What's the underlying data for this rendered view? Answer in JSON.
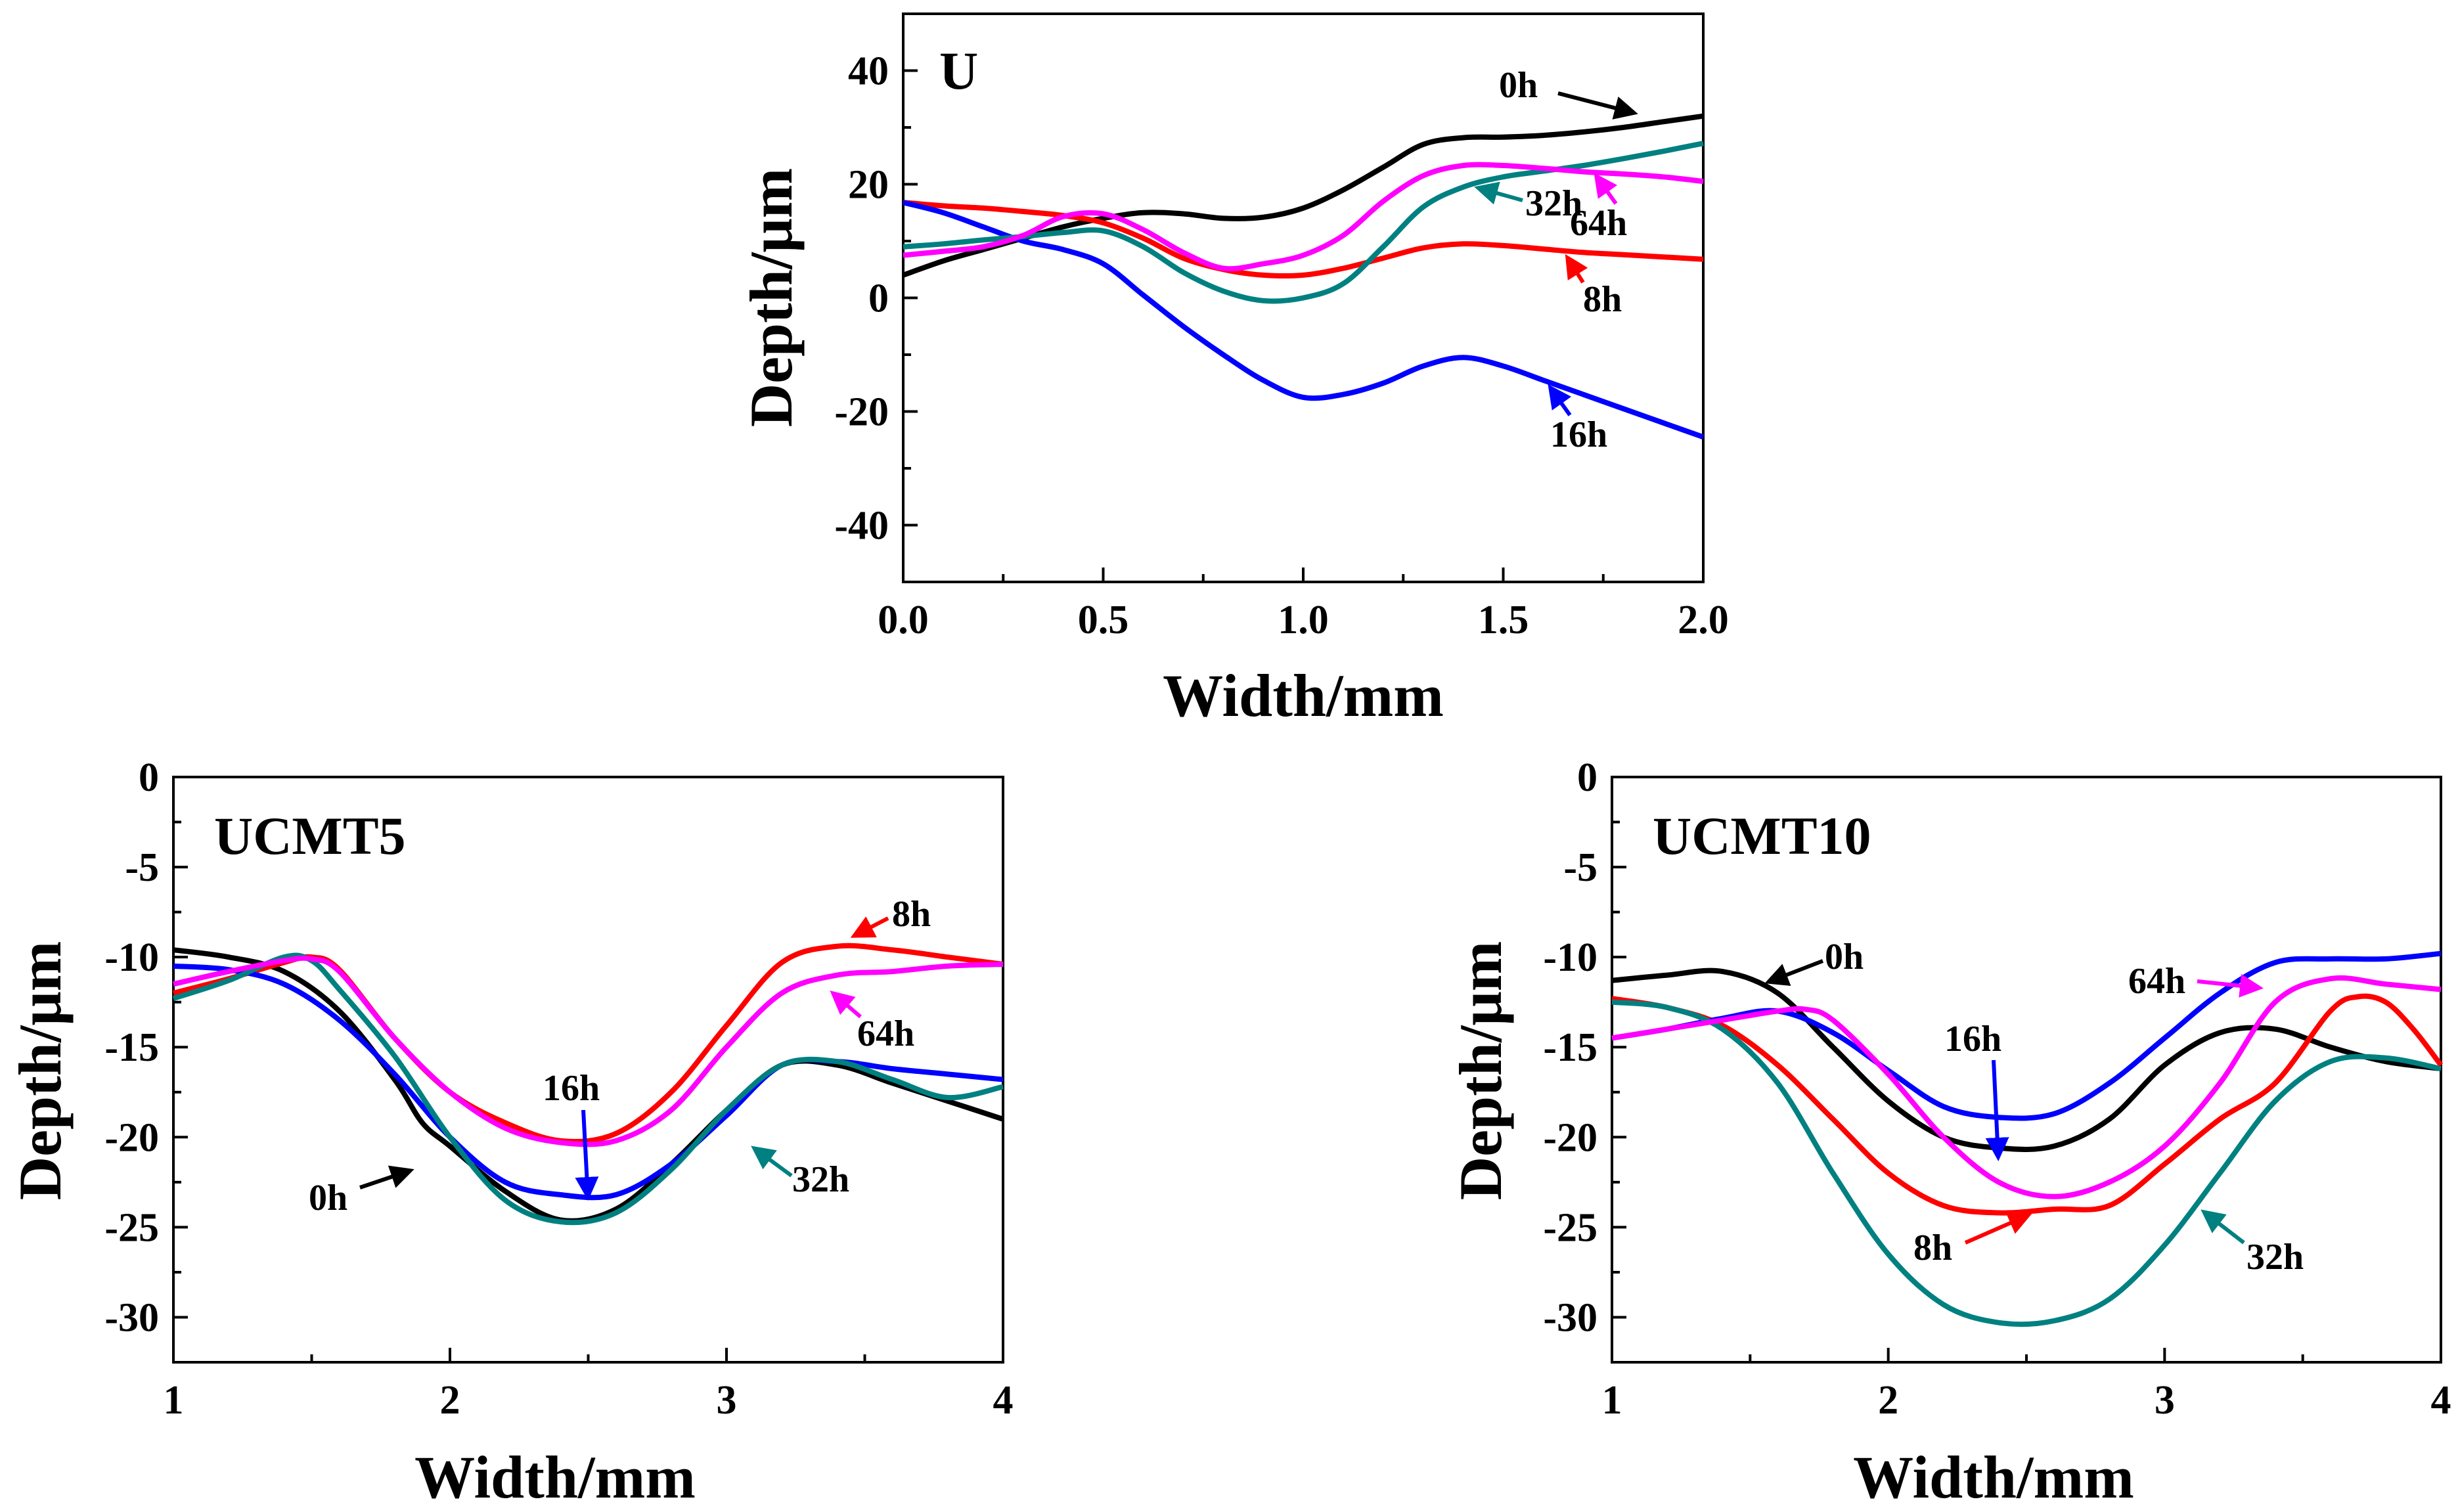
{
  "chart_data": [
    {
      "type": "line",
      "title": "U",
      "xlabel": "Width/mm",
      "ylabel": "Depth/μm",
      "xlim": [
        0,
        2
      ],
      "ylim": [
        -50,
        50
      ],
      "xticks": [
        0,
        0.5,
        1,
        1.5,
        2
      ],
      "xtick_labels": [
        "0.0",
        "0.5",
        "1.0",
        "1.5",
        "2.0"
      ],
      "yticks": [
        -40,
        -20,
        0,
        20,
        40
      ],
      "ytick_labels": [
        "-40",
        "-20",
        "0",
        "20",
        "40"
      ],
      "series": [
        {
          "name": "0h",
          "label": "0h",
          "color": "#000000",
          "x": [
            0,
            0.1,
            0.2,
            0.3,
            0.4,
            0.5,
            0.6,
            0.7,
            0.8,
            0.9,
            1.0,
            1.1,
            1.2,
            1.3,
            1.4,
            1.5,
            1.6,
            1.7,
            1.8,
            1.9,
            2.0
          ],
          "y": [
            4,
            6.5,
            8.5,
            10.5,
            12.5,
            14,
            15,
            14.8,
            14,
            14.2,
            15.8,
            19,
            23,
            27,
            28.2,
            28.3,
            28.6,
            29.2,
            30,
            31,
            32
          ]
        },
        {
          "name": "8h",
          "label": "8h",
          "color": "#ff0000",
          "x": [
            0,
            0.1,
            0.2,
            0.3,
            0.4,
            0.5,
            0.6,
            0.7,
            0.8,
            0.9,
            1.0,
            1.1,
            1.2,
            1.3,
            1.4,
            1.5,
            1.6,
            1.7,
            1.8,
            1.9,
            2.0
          ],
          "y": [
            16.8,
            16.2,
            15.8,
            15.2,
            14.5,
            13.2,
            10.5,
            7,
            5,
            4,
            4,
            5.2,
            7,
            8.8,
            9.5,
            9.2,
            8.6,
            8,
            7.6,
            7.2,
            6.8
          ]
        },
        {
          "name": "16h",
          "label": "16h",
          "color": "#0000ff",
          "x": [
            0,
            0.1,
            0.2,
            0.3,
            0.4,
            0.5,
            0.6,
            0.7,
            0.8,
            0.9,
            1.0,
            1.1,
            1.2,
            1.3,
            1.4,
            1.5,
            1.6,
            1.7,
            1.8,
            1.9,
            2.0
          ],
          "y": [
            16.8,
            15,
            12.5,
            10,
            8.5,
            6,
            0.5,
            -5,
            -10,
            -14.5,
            -17.5,
            -17,
            -15,
            -12,
            -10.5,
            -12,
            -14.5,
            -17,
            -19.5,
            -22,
            -24.5
          ]
        },
        {
          "name": "32h",
          "label": "32h",
          "color": "#008080",
          "x": [
            0,
            0.1,
            0.2,
            0.3,
            0.4,
            0.5,
            0.6,
            0.7,
            0.8,
            0.9,
            1.0,
            1.1,
            1.2,
            1.3,
            1.4,
            1.5,
            1.6,
            1.7,
            1.8,
            1.9,
            2.0
          ],
          "y": [
            9,
            9.5,
            10.2,
            10.8,
            11.5,
            11.8,
            9,
            4.5,
            1.2,
            -0.5,
            0,
            2.5,
            9,
            16,
            19.5,
            21.3,
            22.3,
            23.3,
            24.5,
            25.8,
            27.2
          ]
        },
        {
          "name": "64h",
          "label": "64h",
          "color": "#ff00ff",
          "x": [
            0,
            0.1,
            0.2,
            0.3,
            0.4,
            0.5,
            0.6,
            0.7,
            0.8,
            0.9,
            1.0,
            1.1,
            1.2,
            1.3,
            1.4,
            1.5,
            1.6,
            1.7,
            1.8,
            1.9,
            2.0
          ],
          "y": [
            7.5,
            8.2,
            9,
            11,
            14.3,
            14.8,
            12,
            8,
            5.2,
            6,
            7.5,
            11,
            17,
            21.5,
            23.3,
            23.3,
            22.8,
            22.2,
            21.8,
            21.3,
            20.5
          ]
        }
      ]
    },
    {
      "type": "line",
      "title": "UCMT5",
      "xlabel": "Width/mm",
      "ylabel": "Depth/μm",
      "xlim": [
        1,
        4
      ],
      "ylim": [
        -32.5,
        0
      ],
      "xticks": [
        1,
        2,
        3,
        4
      ],
      "xtick_labels": [
        "1",
        "2",
        "3",
        "4"
      ],
      "yticks": [
        0,
        -5,
        -10,
        -15,
        -20,
        -25,
        -30
      ],
      "ytick_labels": [
        "0",
        "-5",
        "-10",
        "-15",
        "-20",
        "-25",
        "-30"
      ],
      "series": [
        {
          "name": "0h",
          "label": "0h",
          "color": "#000000",
          "x": [
            1,
            1.2,
            1.4,
            1.6,
            1.8,
            1.9,
            2.0,
            2.2,
            2.4,
            2.6,
            2.8,
            3.0,
            3.2,
            3.4,
            3.6,
            3.8,
            4.0
          ],
          "y": [
            -9.6,
            -10,
            -10.8,
            -13,
            -16.8,
            -19.2,
            -20.5,
            -23,
            -24.6,
            -24,
            -21.5,
            -18.5,
            -16,
            -16,
            -17,
            -18,
            -19
          ]
        },
        {
          "name": "8h",
          "label": "8h",
          "color": "#ff0000",
          "x": [
            1,
            1.2,
            1.4,
            1.5,
            1.6,
            1.8,
            2.0,
            2.2,
            2.4,
            2.6,
            2.8,
            3.0,
            3.2,
            3.4,
            3.6,
            3.8,
            4.0
          ],
          "y": [
            -12,
            -11.2,
            -10.3,
            -10,
            -10.7,
            -14.5,
            -17.5,
            -19.2,
            -20.2,
            -19.8,
            -17.5,
            -13.8,
            -10.3,
            -9.4,
            -9.6,
            -10,
            -10.4
          ]
        },
        {
          "name": "16h",
          "label": "16h",
          "color": "#0000ff",
          "x": [
            1,
            1.2,
            1.4,
            1.6,
            1.8,
            2.0,
            2.2,
            2.4,
            2.6,
            2.8,
            3.0,
            3.2,
            3.4,
            3.6,
            3.8,
            4.0
          ],
          "y": [
            -10.5,
            -10.7,
            -11.5,
            -13.5,
            -16.5,
            -20,
            -22.5,
            -23.2,
            -23.2,
            -21.5,
            -18.8,
            -16,
            -15.8,
            -16.2,
            -16.5,
            -16.8
          ]
        },
        {
          "name": "32h",
          "label": "32h",
          "color": "#008080",
          "x": [
            1,
            1.2,
            1.4,
            1.5,
            1.6,
            1.8,
            2.0,
            2.2,
            2.4,
            2.6,
            2.8,
            3.0,
            3.2,
            3.4,
            3.6,
            3.8,
            4.0
          ],
          "y": [
            -12.3,
            -11.3,
            -10,
            -10.2,
            -11.8,
            -15.5,
            -20,
            -23.5,
            -24.7,
            -24.2,
            -21.8,
            -18.5,
            -16,
            -15.8,
            -16.8,
            -17.8,
            -17.2
          ]
        },
        {
          "name": "64h",
          "label": "64h",
          "color": "#ff00ff",
          "x": [
            1,
            1.2,
            1.4,
            1.5,
            1.6,
            1.8,
            2.0,
            2.2,
            2.4,
            2.6,
            2.8,
            3.0,
            3.2,
            3.4,
            3.6,
            3.8,
            4.0
          ],
          "y": [
            -11.5,
            -10.8,
            -10.2,
            -10.1,
            -10.8,
            -14.5,
            -17.5,
            -19.5,
            -20.3,
            -20.2,
            -18.5,
            -15,
            -12,
            -11,
            -10.8,
            -10.5,
            -10.4
          ]
        }
      ]
    },
    {
      "type": "line",
      "title": "UCMT10",
      "xlabel": "Width/mm",
      "ylabel": "Depth/μm",
      "xlim": [
        1,
        4
      ],
      "ylim": [
        -32.5,
        0
      ],
      "xticks": [
        1,
        2,
        3,
        4
      ],
      "xtick_labels": [
        "1",
        "2",
        "3",
        "4"
      ],
      "yticks": [
        0,
        -5,
        -10,
        -15,
        -20,
        -25,
        -30
      ],
      "ytick_labels": [
        "0",
        "-5",
        "-10",
        "-15",
        "-20",
        "-25",
        "-30"
      ],
      "series": [
        {
          "name": "0h",
          "label": "0h",
          "color": "#000000",
          "x": [
            1,
            1.2,
            1.4,
            1.6,
            1.8,
            2.0,
            2.2,
            2.4,
            2.6,
            2.8,
            3.0,
            3.2,
            3.4,
            3.6,
            3.8,
            4.0
          ],
          "y": [
            -11.3,
            -11,
            -10.8,
            -12,
            -15,
            -18,
            -20,
            -20.6,
            -20.5,
            -19,
            -16,
            -14.2,
            -14,
            -15,
            -15.8,
            -16.2
          ]
        },
        {
          "name": "8h",
          "label": "8h",
          "color": "#ff0000",
          "x": [
            1,
            1.2,
            1.4,
            1.6,
            1.8,
            2.0,
            2.2,
            2.4,
            2.6,
            2.8,
            3.0,
            3.2,
            3.4,
            3.6,
            3.7,
            3.8,
            3.9,
            4.0
          ],
          "y": [
            -12.3,
            -12.8,
            -13.8,
            -16,
            -19,
            -22,
            -23.8,
            -24.2,
            -24,
            -23.8,
            -21.5,
            -19,
            -17,
            -13,
            -12.2,
            -12.5,
            -14,
            -16
          ]
        },
        {
          "name": "16h",
          "label": "16h",
          "color": "#0000ff",
          "x": [
            1,
            1.2,
            1.4,
            1.6,
            1.8,
            2.0,
            2.2,
            2.4,
            2.6,
            2.8,
            3.0,
            3.2,
            3.4,
            3.6,
            3.8,
            4.0
          ],
          "y": [
            -14.5,
            -14,
            -13.4,
            -13,
            -14.2,
            -16.3,
            -18.3,
            -18.9,
            -18.7,
            -17,
            -14.5,
            -12,
            -10.3,
            -10.1,
            -10.1,
            -9.8
          ]
        },
        {
          "name": "32h",
          "label": "32h",
          "color": "#008080",
          "x": [
            1,
            1.2,
            1.4,
            1.6,
            1.8,
            2.0,
            2.2,
            2.4,
            2.6,
            2.8,
            3.0,
            3.2,
            3.4,
            3.6,
            3.8,
            4.0
          ],
          "y": [
            -12.5,
            -12.8,
            -14,
            -17,
            -22,
            -26.5,
            -29.3,
            -30.3,
            -30.2,
            -29,
            -26,
            -22,
            -18,
            -15.8,
            -15.6,
            -16.2
          ]
        },
        {
          "name": "64h",
          "label": "64h",
          "color": "#ff00ff",
          "x": [
            1,
            1.2,
            1.4,
            1.6,
            1.7,
            1.8,
            2.0,
            2.2,
            2.4,
            2.6,
            2.8,
            3.0,
            3.2,
            3.4,
            3.6,
            3.8,
            4.0
          ],
          "y": [
            -14.5,
            -14,
            -13.5,
            -13,
            -12.9,
            -13.5,
            -16.5,
            -20,
            -22.5,
            -23.3,
            -22.5,
            -20.5,
            -17,
            -12.5,
            -11.2,
            -11.5,
            -11.8
          ]
        }
      ]
    }
  ]
}
